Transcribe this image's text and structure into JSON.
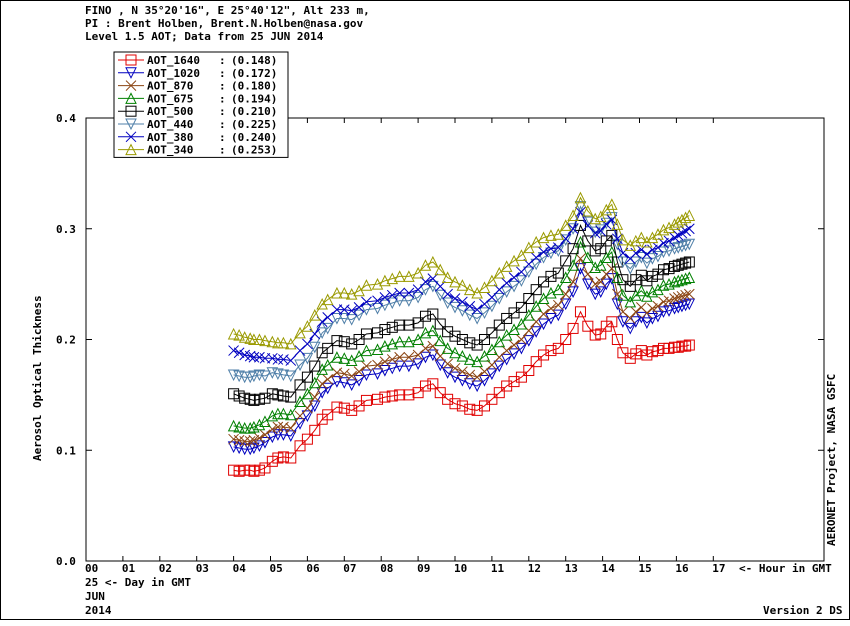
{
  "header": {
    "line1": "FINO , N 35°20'16\", E 25°40'12\", Alt 233 m,",
    "line2": "PI : Brent Holben, Brent.N.Holben@nasa.gov",
    "line3": "Level 1.5 AOT; Data from 25 JUN 2014"
  },
  "footer": {
    "day_label": "25  <- Day in GMT",
    "month": "JUN",
    "year": "2014",
    "version": "Version 2 DS",
    "hour_axis_suffix": "<- Hour in GMT"
  },
  "right_label": "AERONET Project, NASA GSFC",
  "chart_data": {
    "type": "line",
    "ylabel": "Aerosol Optical Thickness",
    "ylim": [
      0.0,
      0.4
    ],
    "xlim": [
      0,
      20
    ],
    "yticks": [
      "0.0",
      "0.1",
      "0.2",
      "0.3",
      "0.4"
    ],
    "xticks": [
      "00",
      "01",
      "02",
      "03",
      "04",
      "05",
      "06",
      "07",
      "08",
      "09",
      "10",
      "11",
      "12",
      "13",
      "14",
      "15",
      "16",
      "17"
    ],
    "legend_position": "top-left",
    "x": [
      4.0,
      4.15,
      4.3,
      4.45,
      4.55,
      4.7,
      4.85,
      5.05,
      5.2,
      5.35,
      5.55,
      5.8,
      6.0,
      6.2,
      6.4,
      6.55,
      6.8,
      7.0,
      7.2,
      7.4,
      7.6,
      7.9,
      8.1,
      8.3,
      8.5,
      8.75,
      9.0,
      9.2,
      9.4,
      9.6,
      9.8,
      10.0,
      10.2,
      10.4,
      10.6,
      10.8,
      11.0,
      11.2,
      11.4,
      11.6,
      11.8,
      12.0,
      12.2,
      12.4,
      12.6,
      12.8,
      13.0,
      13.2,
      13.4,
      13.6,
      13.8,
      13.95,
      14.1,
      14.25,
      14.4,
      14.55,
      14.75,
      14.9,
      15.05,
      15.2,
      15.35,
      15.5,
      15.65,
      15.8,
      15.95,
      16.05,
      16.15,
      16.25,
      16.35
    ],
    "series": [
      {
        "name": "AOT_1640",
        "avg": "(0.148)",
        "color": "#e00000",
        "marker": "square",
        "values": [
          0.082,
          0.081,
          0.082,
          0.082,
          0.081,
          0.082,
          0.084,
          0.09,
          0.093,
          0.094,
          0.093,
          0.104,
          0.11,
          0.118,
          0.128,
          0.132,
          0.139,
          0.138,
          0.136,
          0.14,
          0.145,
          0.146,
          0.148,
          0.149,
          0.15,
          0.15,
          0.152,
          0.158,
          0.16,
          0.152,
          0.146,
          0.142,
          0.14,
          0.137,
          0.136,
          0.14,
          0.146,
          0.152,
          0.158,
          0.162,
          0.166,
          0.172,
          0.18,
          0.186,
          0.19,
          0.192,
          0.2,
          0.21,
          0.225,
          0.212,
          0.204,
          0.205,
          0.212,
          0.216,
          0.2,
          0.188,
          0.183,
          0.187,
          0.19,
          0.186,
          0.189,
          0.19,
          0.192,
          0.192,
          0.193,
          0.193,
          0.194,
          0.194,
          0.195
        ]
      },
      {
        "name": "AOT_1020",
        "avg": "(0.172)",
        "color": "#0000c0",
        "marker": "tri-down",
        "values": [
          0.103,
          0.102,
          0.101,
          0.101,
          0.102,
          0.104,
          0.107,
          0.112,
          0.114,
          0.114,
          0.113,
          0.124,
          0.131,
          0.14,
          0.152,
          0.156,
          0.162,
          0.161,
          0.159,
          0.163,
          0.168,
          0.169,
          0.172,
          0.174,
          0.176,
          0.176,
          0.178,
          0.184,
          0.186,
          0.177,
          0.17,
          0.166,
          0.163,
          0.16,
          0.158,
          0.163,
          0.169,
          0.176,
          0.182,
          0.187,
          0.192,
          0.199,
          0.207,
          0.214,
          0.219,
          0.222,
          0.232,
          0.243,
          0.264,
          0.25,
          0.241,
          0.243,
          0.25,
          0.255,
          0.232,
          0.216,
          0.21,
          0.216,
          0.22,
          0.215,
          0.219,
          0.221,
          0.225,
          0.226,
          0.228,
          0.229,
          0.23,
          0.231,
          0.232
        ]
      },
      {
        "name": "AOT_870",
        "avg": "(0.180)",
        "color": "#8b4513",
        "marker": "x",
        "values": [
          0.11,
          0.109,
          0.108,
          0.108,
          0.109,
          0.111,
          0.114,
          0.119,
          0.121,
          0.121,
          0.12,
          0.131,
          0.138,
          0.148,
          0.16,
          0.164,
          0.17,
          0.169,
          0.167,
          0.171,
          0.176,
          0.177,
          0.18,
          0.182,
          0.184,
          0.184,
          0.186,
          0.192,
          0.194,
          0.185,
          0.178,
          0.174,
          0.171,
          0.168,
          0.166,
          0.171,
          0.177,
          0.184,
          0.19,
          0.195,
          0.2,
          0.208,
          0.216,
          0.223,
          0.228,
          0.231,
          0.241,
          0.252,
          0.273,
          0.259,
          0.25,
          0.252,
          0.259,
          0.264,
          0.241,
          0.225,
          0.219,
          0.225,
          0.229,
          0.224,
          0.228,
          0.23,
          0.234,
          0.235,
          0.237,
          0.238,
          0.239,
          0.24,
          0.241
        ]
      },
      {
        "name": "AOT_675",
        "avg": "(0.194)",
        "color": "#008000",
        "marker": "tri-up",
        "values": [
          0.122,
          0.121,
          0.12,
          0.12,
          0.121,
          0.123,
          0.126,
          0.131,
          0.133,
          0.133,
          0.132,
          0.144,
          0.151,
          0.161,
          0.173,
          0.177,
          0.184,
          0.183,
          0.181,
          0.185,
          0.19,
          0.191,
          0.194,
          0.196,
          0.198,
          0.198,
          0.2,
          0.206,
          0.208,
          0.199,
          0.192,
          0.188,
          0.185,
          0.182,
          0.18,
          0.185,
          0.191,
          0.198,
          0.204,
          0.209,
          0.214,
          0.222,
          0.23,
          0.237,
          0.242,
          0.245,
          0.256,
          0.267,
          0.288,
          0.274,
          0.265,
          0.267,
          0.274,
          0.279,
          0.256,
          0.24,
          0.234,
          0.24,
          0.244,
          0.239,
          0.243,
          0.245,
          0.249,
          0.25,
          0.252,
          0.253,
          0.254,
          0.255,
          0.256
        ]
      },
      {
        "name": "AOT_500",
        "avg": "(0.210)",
        "color": "#000000",
        "marker": "square",
        "values": [
          0.151,
          0.149,
          0.147,
          0.146,
          0.145,
          0.146,
          0.147,
          0.151,
          0.15,
          0.149,
          0.148,
          0.159,
          0.166,
          0.176,
          0.188,
          0.192,
          0.199,
          0.198,
          0.196,
          0.2,
          0.205,
          0.206,
          0.209,
          0.211,
          0.213,
          0.213,
          0.215,
          0.221,
          0.223,
          0.214,
          0.207,
          0.203,
          0.2,
          0.197,
          0.195,
          0.2,
          0.206,
          0.213,
          0.219,
          0.224,
          0.229,
          0.237,
          0.245,
          0.252,
          0.257,
          0.26,
          0.271,
          0.282,
          0.303,
          0.289,
          0.28,
          0.282,
          0.289,
          0.294,
          0.27,
          0.254,
          0.248,
          0.254,
          0.258,
          0.253,
          0.257,
          0.259,
          0.263,
          0.264,
          0.266,
          0.267,
          0.268,
          0.269,
          0.27
        ]
      },
      {
        "name": "AOT_440",
        "avg": "(0.225)",
        "color": "#4f7fa8",
        "marker": "tri-down",
        "values": [
          0.168,
          0.167,
          0.166,
          0.166,
          0.167,
          0.168,
          0.167,
          0.17,
          0.169,
          0.168,
          0.167,
          0.177,
          0.183,
          0.193,
          0.206,
          0.21,
          0.219,
          0.219,
          0.218,
          0.222,
          0.227,
          0.228,
          0.231,
          0.233,
          0.235,
          0.235,
          0.238,
          0.245,
          0.248,
          0.24,
          0.233,
          0.229,
          0.226,
          0.222,
          0.219,
          0.224,
          0.23,
          0.237,
          0.243,
          0.248,
          0.253,
          0.261,
          0.268,
          0.274,
          0.278,
          0.28,
          0.29,
          0.3,
          0.32,
          0.306,
          0.297,
          0.299,
          0.305,
          0.31,
          0.286,
          0.27,
          0.264,
          0.27,
          0.274,
          0.269,
          0.273,
          0.275,
          0.279,
          0.28,
          0.282,
          0.283,
          0.284,
          0.285,
          0.286
        ]
      },
      {
        "name": "AOT_380",
        "avg": "(0.240)",
        "color": "#0000c0",
        "marker": "x",
        "values": [
          0.19,
          0.188,
          0.186,
          0.185,
          0.184,
          0.184,
          0.183,
          0.183,
          0.182,
          0.182,
          0.181,
          0.19,
          0.196,
          0.205,
          0.216,
          0.22,
          0.227,
          0.227,
          0.226,
          0.229,
          0.234,
          0.235,
          0.238,
          0.24,
          0.242,
          0.242,
          0.245,
          0.252,
          0.255,
          0.248,
          0.241,
          0.237,
          0.234,
          0.23,
          0.227,
          0.232,
          0.238,
          0.245,
          0.251,
          0.256,
          0.261,
          0.268,
          0.274,
          0.279,
          0.282,
          0.283,
          0.291,
          0.3,
          0.315,
          0.303,
          0.296,
          0.298,
          0.304,
          0.308,
          0.291,
          0.278,
          0.273,
          0.278,
          0.281,
          0.277,
          0.281,
          0.283,
          0.287,
          0.289,
          0.292,
          0.294,
          0.296,
          0.298,
          0.3
        ]
      },
      {
        "name": "AOT_340",
        "avg": "(0.253)",
        "color": "#9a9a00",
        "marker": "tri-up",
        "values": [
          0.205,
          0.204,
          0.202,
          0.201,
          0.2,
          0.2,
          0.199,
          0.198,
          0.197,
          0.197,
          0.196,
          0.206,
          0.212,
          0.222,
          0.232,
          0.236,
          0.242,
          0.242,
          0.241,
          0.244,
          0.249,
          0.25,
          0.253,
          0.255,
          0.257,
          0.257,
          0.26,
          0.267,
          0.27,
          0.263,
          0.256,
          0.252,
          0.249,
          0.245,
          0.242,
          0.247,
          0.253,
          0.26,
          0.266,
          0.271,
          0.276,
          0.283,
          0.288,
          0.292,
          0.294,
          0.295,
          0.303,
          0.312,
          0.328,
          0.316,
          0.309,
          0.311,
          0.317,
          0.322,
          0.304,
          0.29,
          0.285,
          0.289,
          0.292,
          0.288,
          0.292,
          0.295,
          0.299,
          0.301,
          0.304,
          0.306,
          0.308,
          0.31,
          0.312
        ]
      }
    ]
  }
}
